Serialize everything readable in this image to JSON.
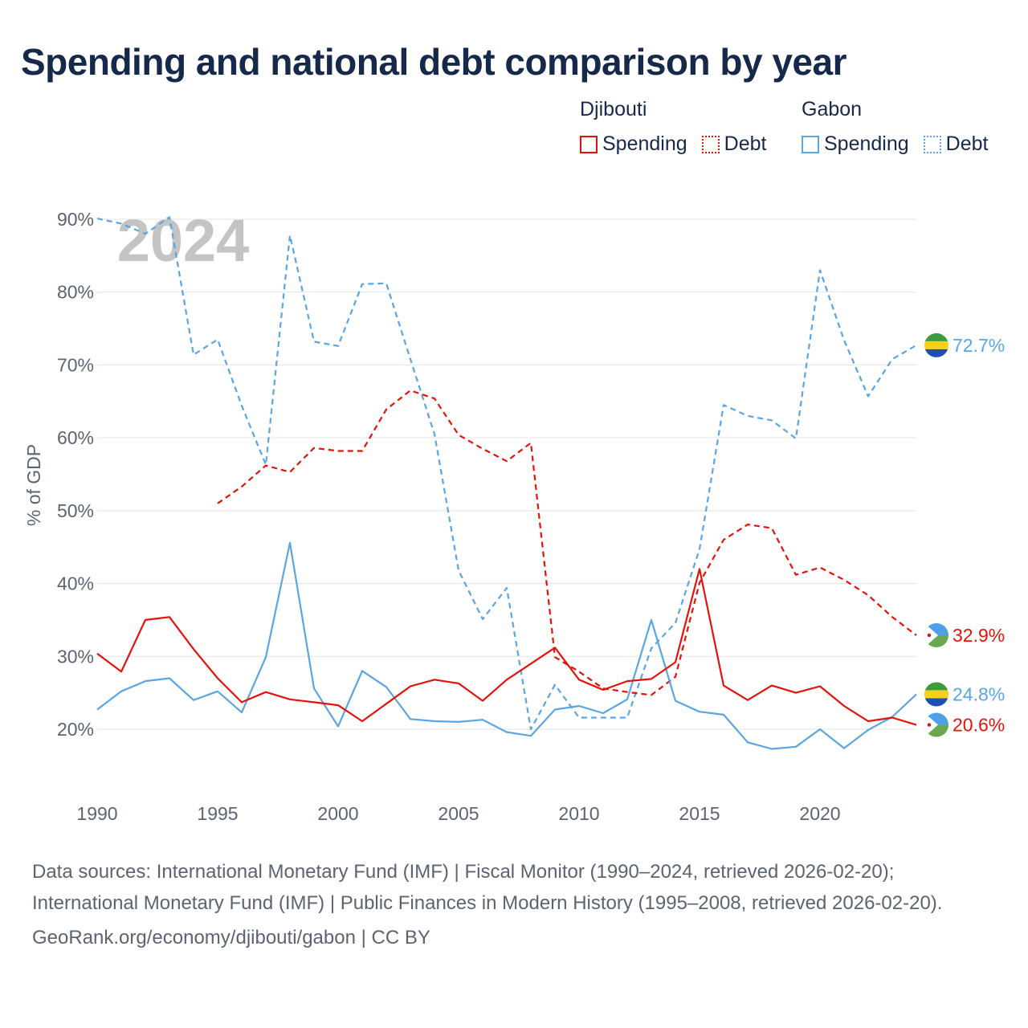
{
  "title": "Spending and national debt comparison by year",
  "legend": {
    "groups": [
      {
        "country": "Djibouti",
        "color": "#e3120b",
        "items": [
          {
            "label": "Spending",
            "style": "solid"
          },
          {
            "label": "Debt",
            "style": "dotted"
          }
        ]
      },
      {
        "country": "Gabon",
        "color": "#5aa5e3",
        "items": [
          {
            "label": "Spending",
            "style": "solid"
          },
          {
            "label": "Debt",
            "style": "dotted"
          }
        ]
      }
    ]
  },
  "year_watermark": "2024",
  "chart_data": {
    "type": "line",
    "ylabel": "% of GDP",
    "xlabel": "",
    "xlim": [
      1990,
      2024
    ],
    "ylim": [
      12,
      90
    ],
    "x_ticks": [
      1990,
      1995,
      2000,
      2005,
      2010,
      2015,
      2020
    ],
    "y_ticks": [
      20,
      30,
      40,
      50,
      60,
      70,
      80,
      90
    ],
    "y_tick_labels": [
      "20%",
      "30%",
      "40%",
      "50%",
      "60%",
      "70%",
      "80%",
      "90%"
    ],
    "series": [
      {
        "name": "Gabon Debt",
        "country": "Gabon",
        "metric": "Debt",
        "color": "#5aa5e3",
        "dash": true,
        "end_label": "72.7%",
        "points": [
          [
            1990,
            90.1
          ],
          [
            1991,
            89.4
          ],
          [
            1992,
            88.0
          ],
          [
            1993,
            90.3
          ],
          [
            1994,
            71.4
          ],
          [
            1995,
            73.5
          ],
          [
            1996,
            64.4
          ],
          [
            1997,
            56.3
          ],
          [
            1998,
            87.8
          ],
          [
            1999,
            73.2
          ],
          [
            2000,
            72.6
          ],
          [
            2001,
            81.1
          ],
          [
            2002,
            81.2
          ],
          [
            2003,
            70.8
          ],
          [
            2004,
            60.5
          ],
          [
            2005,
            41.8
          ],
          [
            2006,
            35.1
          ],
          [
            2007,
            39.4
          ],
          [
            2008,
            20.0
          ],
          [
            2009,
            26.1
          ],
          [
            2010,
            21.6
          ],
          [
            2011,
            21.6
          ],
          [
            2012,
            21.6
          ],
          [
            2013,
            31.1
          ],
          [
            2014,
            34.6
          ],
          [
            2015,
            44.7
          ],
          [
            2016,
            64.5
          ],
          [
            2017,
            63.0
          ],
          [
            2018,
            62.4
          ],
          [
            2019,
            59.9
          ],
          [
            2020,
            83.0
          ],
          [
            2021,
            73.4
          ],
          [
            2022,
            65.7
          ],
          [
            2023,
            70.8
          ],
          [
            2024,
            72.7
          ]
        ]
      },
      {
        "name": "Djibouti Debt",
        "country": "Djibouti",
        "metric": "Debt",
        "color": "#e3120b",
        "dash": true,
        "end_label": "32.9%",
        "points": [
          [
            1995,
            51.0
          ],
          [
            1996,
            53.3
          ],
          [
            1997,
            56.2
          ],
          [
            1998,
            55.3
          ],
          [
            1999,
            58.6
          ],
          [
            2000,
            58.2
          ],
          [
            2001,
            58.2
          ],
          [
            2002,
            63.9
          ],
          [
            2003,
            66.5
          ],
          [
            2004,
            65.4
          ],
          [
            2005,
            60.4
          ],
          [
            2006,
            58.5
          ],
          [
            2007,
            56.8
          ],
          [
            2008,
            59.3
          ],
          [
            2009,
            29.9
          ],
          [
            2010,
            27.9
          ],
          [
            2011,
            25.6
          ],
          [
            2012,
            25.1
          ],
          [
            2013,
            24.7
          ],
          [
            2014,
            27.2
          ],
          [
            2015,
            40.1
          ],
          [
            2016,
            46.0
          ],
          [
            2017,
            48.1
          ],
          [
            2018,
            47.6
          ],
          [
            2019,
            41.2
          ],
          [
            2020,
            42.2
          ],
          [
            2021,
            40.5
          ],
          [
            2022,
            38.4
          ],
          [
            2023,
            35.4
          ],
          [
            2024,
            32.9
          ]
        ]
      },
      {
        "name": "Gabon Spending",
        "country": "Gabon",
        "metric": "Spending",
        "color": "#5aa5e3",
        "dash": false,
        "end_label": "24.8%",
        "points": [
          [
            1990,
            22.7
          ],
          [
            1991,
            25.2
          ],
          [
            1992,
            26.6
          ],
          [
            1993,
            27.0
          ],
          [
            1994,
            24.0
          ],
          [
            1995,
            25.2
          ],
          [
            1996,
            22.3
          ],
          [
            1997,
            29.9
          ],
          [
            1998,
            45.6
          ],
          [
            1999,
            25.6
          ],
          [
            2000,
            20.4
          ],
          [
            2001,
            28.0
          ],
          [
            2002,
            25.8
          ],
          [
            2003,
            21.4
          ],
          [
            2004,
            21.1
          ],
          [
            2005,
            21.0
          ],
          [
            2006,
            21.3
          ],
          [
            2007,
            19.6
          ],
          [
            2008,
            19.1
          ],
          [
            2009,
            22.7
          ],
          [
            2010,
            23.2
          ],
          [
            2011,
            22.2
          ],
          [
            2012,
            24.1
          ],
          [
            2013,
            35.0
          ],
          [
            2014,
            23.9
          ],
          [
            2015,
            22.4
          ],
          [
            2016,
            22.0
          ],
          [
            2017,
            18.2
          ],
          [
            2018,
            17.3
          ],
          [
            2019,
            17.6
          ],
          [
            2020,
            20.0
          ],
          [
            2021,
            17.4
          ],
          [
            2022,
            19.9
          ],
          [
            2023,
            21.7
          ],
          [
            2024,
            24.8
          ]
        ]
      },
      {
        "name": "Djibouti Spending",
        "country": "Djibouti",
        "metric": "Spending",
        "color": "#e3120b",
        "dash": false,
        "end_label": "20.6%",
        "points": [
          [
            1990,
            30.4
          ],
          [
            1991,
            27.9
          ],
          [
            1992,
            35.0
          ],
          [
            1993,
            35.4
          ],
          [
            1994,
            31.0
          ],
          [
            1995,
            27.0
          ],
          [
            1996,
            23.7
          ],
          [
            1997,
            25.1
          ],
          [
            1998,
            24.1
          ],
          [
            1999,
            23.7
          ],
          [
            2000,
            23.3
          ],
          [
            2001,
            21.1
          ],
          [
            2002,
            23.5
          ],
          [
            2003,
            25.9
          ],
          [
            2004,
            26.8
          ],
          [
            2005,
            26.3
          ],
          [
            2006,
            23.9
          ],
          [
            2007,
            26.8
          ],
          [
            2008,
            29.0
          ],
          [
            2009,
            31.2
          ],
          [
            2010,
            26.8
          ],
          [
            2011,
            25.4
          ],
          [
            2012,
            26.6
          ],
          [
            2013,
            26.9
          ],
          [
            2014,
            29.2
          ],
          [
            2015,
            42.0
          ],
          [
            2016,
            26.0
          ],
          [
            2017,
            24.0
          ],
          [
            2018,
            26.0
          ],
          [
            2019,
            25.0
          ],
          [
            2020,
            25.9
          ],
          [
            2021,
            23.2
          ],
          [
            2022,
            21.1
          ],
          [
            2023,
            21.6
          ],
          [
            2024,
            20.6
          ]
        ]
      }
    ]
  },
  "footer": {
    "sources": "Data sources: International Monetary Fund (IMF) | Fiscal Monitor (1990–2024, retrieved 2026-02-20); International Monetary Fund (IMF) | Public Finances in Modern History (1995–2008, retrieved 2026-02-20).",
    "site": "GeoRank.org/economy/djibouti/gabon | CC BY"
  }
}
